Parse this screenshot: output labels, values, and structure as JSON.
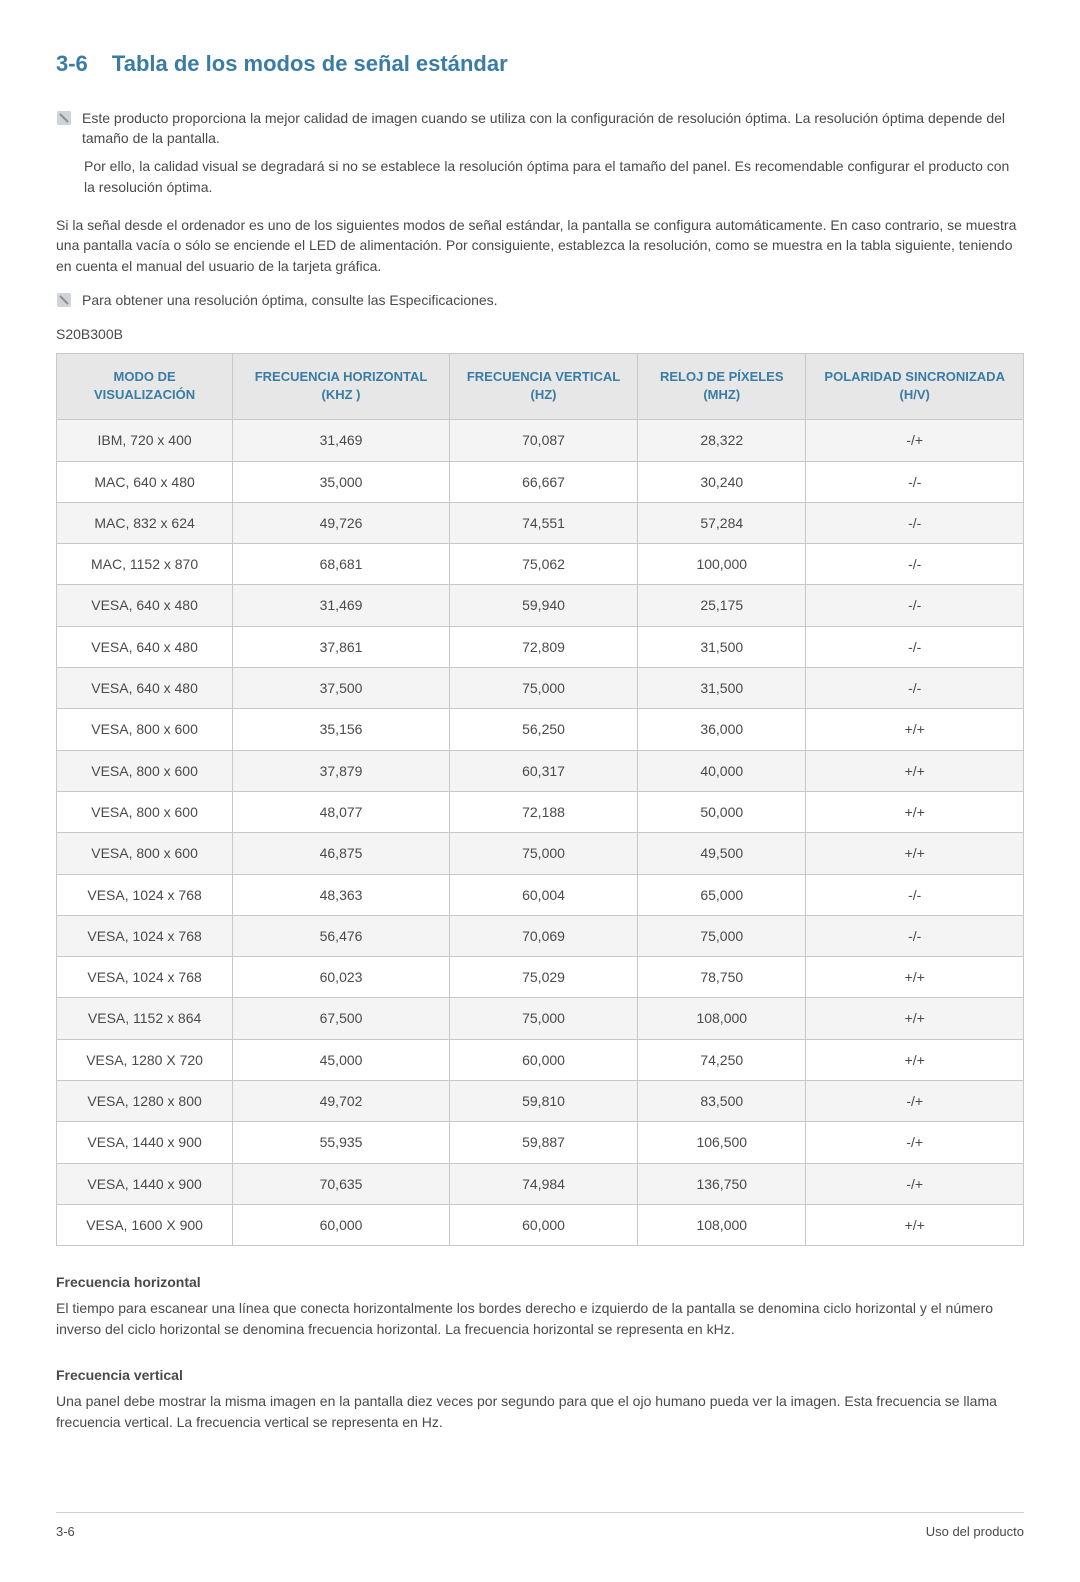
{
  "section": {
    "number": "3-6",
    "title": "Tabla de los modos de señal estándar",
    "title_color": "#3a7ca5",
    "title_fontsize": 22
  },
  "notes": {
    "bullet1": "Este producto proporciona la mejor calidad de imagen cuando se utiliza con la configuración de resolución óptima. La resolución óptima depende del tamaño de la pantalla.",
    "bullet1_sub": "Por ello, la calidad visual se degradará si no se establece la resolución óptima para el tamaño del panel. Es recomendable configurar el producto con la resolución óptima.",
    "paragraph": "Si la señal desde el ordenador es uno de los siguientes modos de señal estándar, la pantalla se configura automáticamente. En caso contrario, se muestra una pantalla vacía o sólo se enciende el LED de alimentación. Por consiguiente, establezca la resolución, como se muestra en la tabla siguiente, teniendo en cuenta el manual del usuario de la tarjeta gráfica.",
    "bullet2": "Para obtener una resolución óptima, consulte las Especificaciones."
  },
  "model": "S20B300B",
  "table": {
    "type": "table",
    "header_bg": "#e7e7e7",
    "header_color": "#3a7ca5",
    "border_color": "#c8c8c8",
    "row_alt_bg": "#f4f4f4",
    "columns": [
      "MODO DE VISUALIZACIÓN",
      "FRECUENCIA HORIZONTAL (KHZ )",
      "FRECUENCIA VERTICAL (HZ)",
      "RELOJ DE PÍXELES (MHZ)",
      "POLARIDAD SINCRONIZADA (H/V)"
    ],
    "rows": [
      [
        "IBM, 720 x 400",
        "31,469",
        "70,087",
        "28,322",
        "-/+"
      ],
      [
        "MAC, 640 x 480",
        "35,000",
        "66,667",
        "30,240",
        "-/-"
      ],
      [
        "MAC, 832 x 624",
        "49,726",
        "74,551",
        "57,284",
        "-/-"
      ],
      [
        "MAC, 1152 x 870",
        "68,681",
        "75,062",
        "100,000",
        "-/-"
      ],
      [
        "VESA, 640 x 480",
        "31,469",
        "59,940",
        "25,175",
        "-/-"
      ],
      [
        "VESA, 640 x 480",
        "37,861",
        "72,809",
        "31,500",
        "-/-"
      ],
      [
        "VESA, 640 x 480",
        "37,500",
        "75,000",
        "31,500",
        "-/-"
      ],
      [
        "VESA, 800 x 600",
        "35,156",
        "56,250",
        "36,000",
        "+/+"
      ],
      [
        "VESA, 800 x 600",
        "37,879",
        "60,317",
        "40,000",
        "+/+"
      ],
      [
        "VESA, 800 x 600",
        "48,077",
        "72,188",
        "50,000",
        "+/+"
      ],
      [
        "VESA, 800 x 600",
        "46,875",
        "75,000",
        "49,500",
        "+/+"
      ],
      [
        "VESA, 1024 x 768",
        "48,363",
        "60,004",
        "65,000",
        "-/-"
      ],
      [
        "VESA, 1024 x 768",
        "56,476",
        "70,069",
        "75,000",
        "-/-"
      ],
      [
        "VESA, 1024 x 768",
        "60,023",
        "75,029",
        "78,750",
        "+/+"
      ],
      [
        "VESA, 1152 x 864",
        "67,500",
        "75,000",
        "108,000",
        "+/+"
      ],
      [
        "VESA, 1280 X 720",
        "45,000",
        "60,000",
        "74,250",
        "+/+"
      ],
      [
        "VESA, 1280 x 800",
        "49,702",
        "59,810",
        "83,500",
        "-/+"
      ],
      [
        "VESA, 1440 x 900",
        "55,935",
        "59,887",
        "106,500",
        "-/+"
      ],
      [
        "VESA, 1440 x 900",
        "70,635",
        "74,984",
        "136,750",
        "-/+"
      ],
      [
        "VESA, 1600 X 900",
        "60,000",
        "60,000",
        "108,000",
        "+/+"
      ]
    ]
  },
  "definitions": {
    "h_title": "Frecuencia horizontal",
    "h_body": "El tiempo para escanear una línea que conecta horizontalmente los bordes derecho e izquierdo de la pantalla se denomina ciclo horizontal y el número inverso del ciclo horizontal se denomina frecuencia horizontal. La frecuencia horizontal se representa en kHz.",
    "v_title": "Frecuencia vertical",
    "v_body": "Una panel debe mostrar la misma imagen en la pantalla diez veces por segundo para que el ojo humano pueda ver la imagen. Esta frecuencia se llama frecuencia vertical. La frecuencia vertical se representa en Hz."
  },
  "footer": {
    "left": "3-6",
    "right": "Uso del producto"
  },
  "icon": {
    "note_svg_color": "#9aa0a6"
  }
}
